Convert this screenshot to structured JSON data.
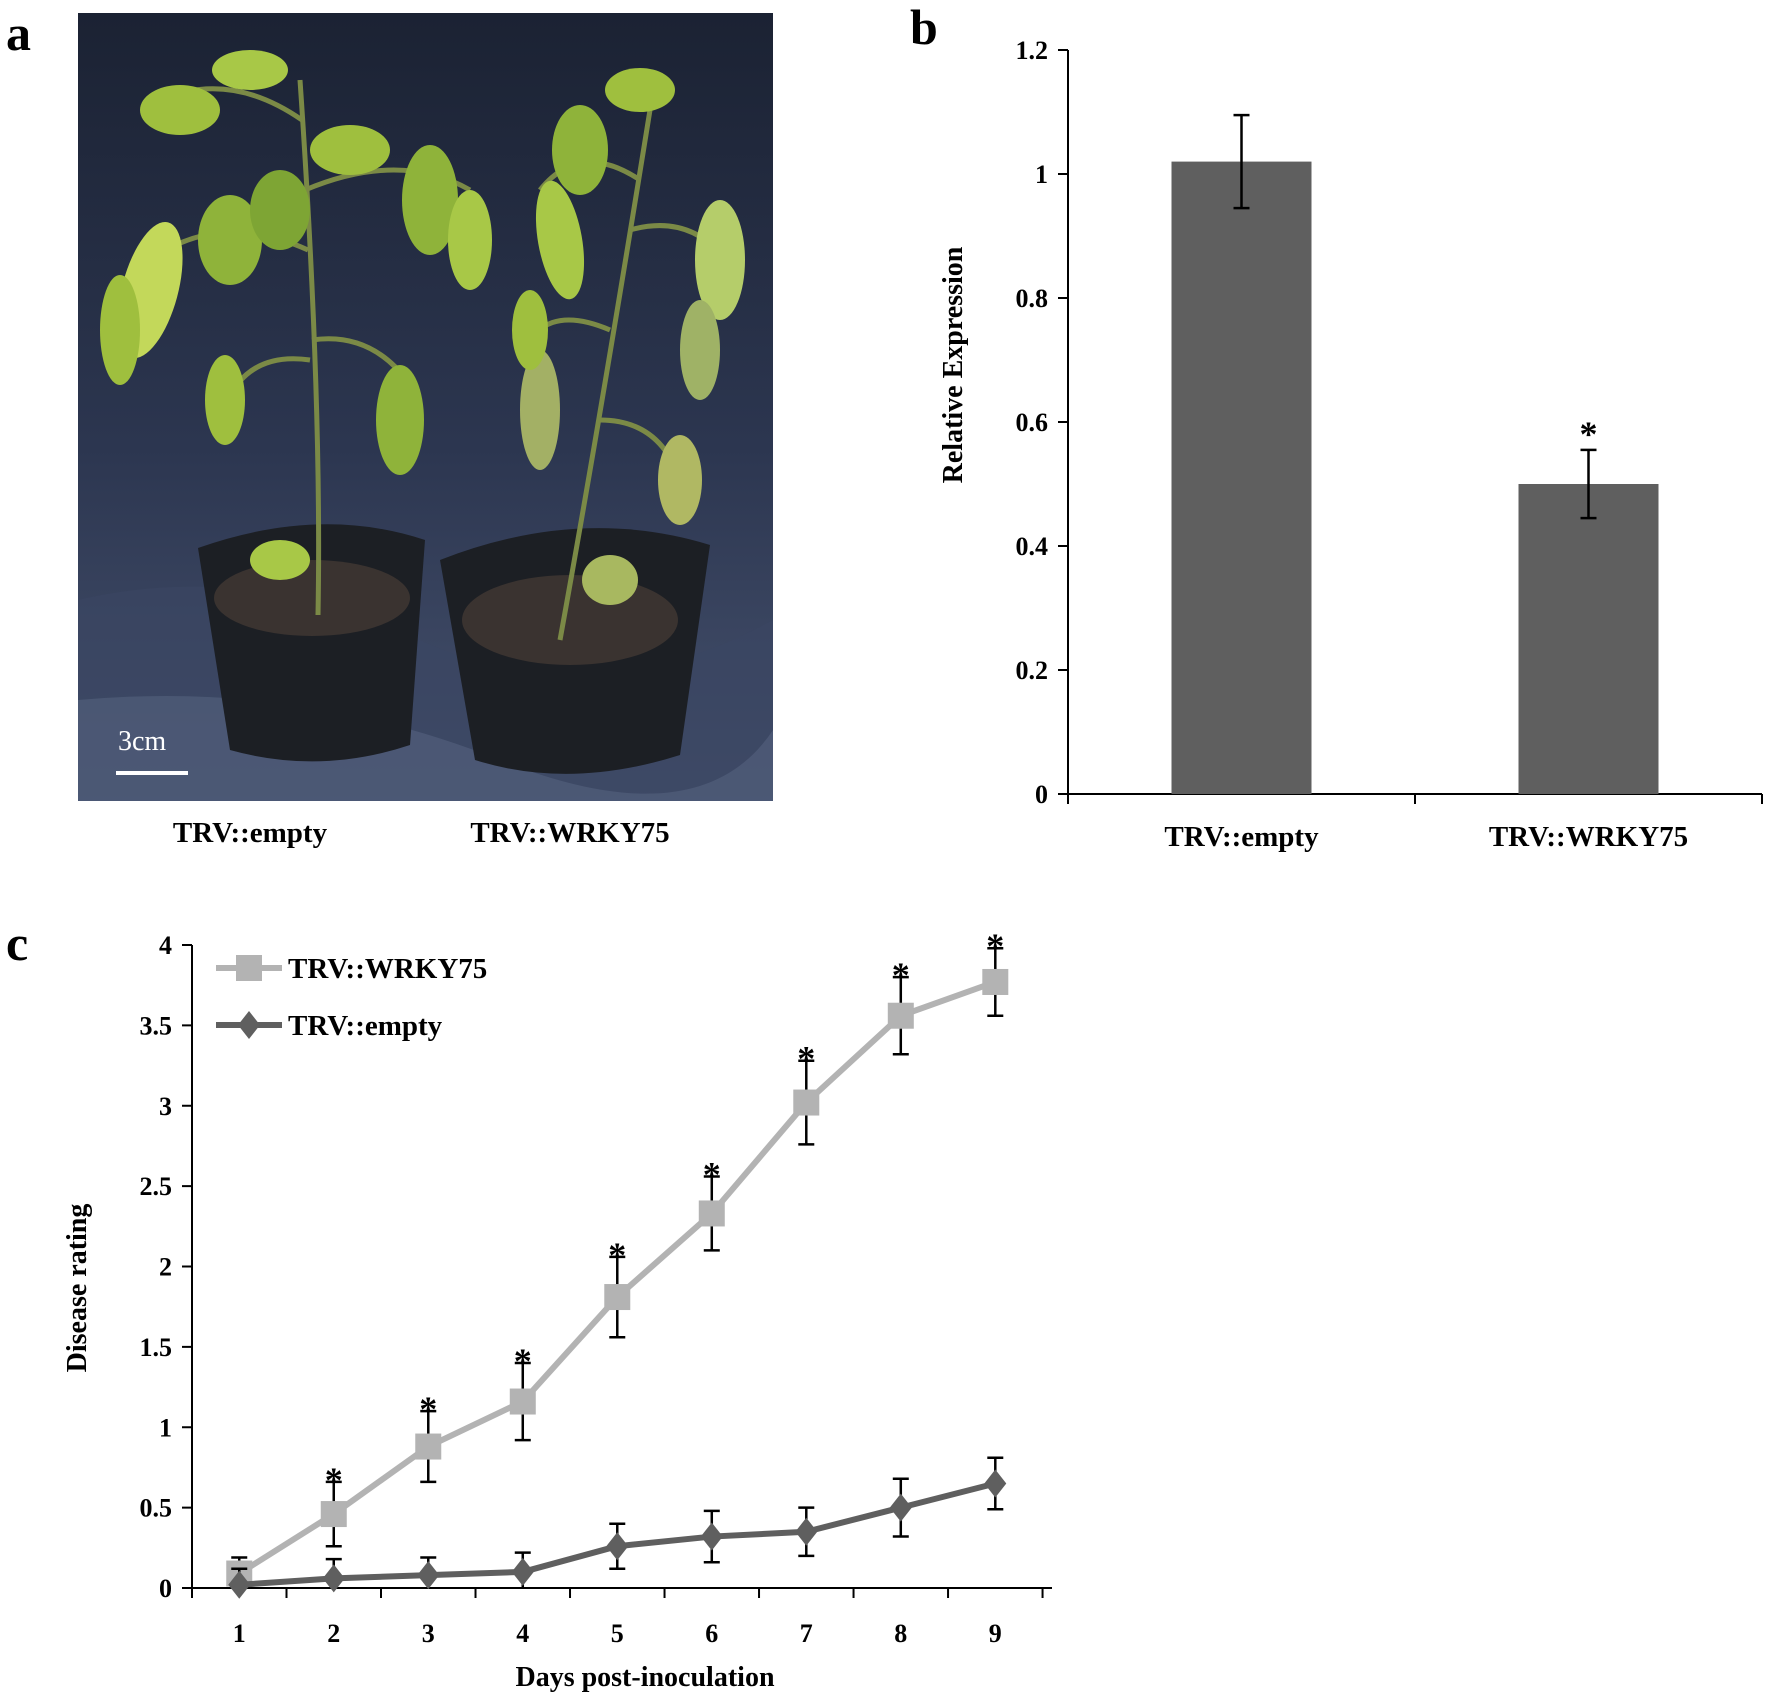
{
  "panels": {
    "a": "a",
    "b": "b",
    "c": "c"
  },
  "photo": {
    "scale_bar_label": "3cm",
    "labels": [
      "TRV::empty",
      "TRV::WRKY75"
    ],
    "colors": {
      "background": "#2f3b55",
      "pot": "#1c1f24",
      "soil": "#3a3330",
      "leaf": "#8fb33a",
      "leaf_light": "#c3d85a",
      "stem": "#7b8a46"
    }
  },
  "chart_data": [
    {
      "panel": "b",
      "type": "bar",
      "categories": [
        "TRV::empty",
        "TRV::WRKY75"
      ],
      "values": [
        1.02,
        0.5
      ],
      "error": [
        0.075,
        0.055
      ],
      "significance": [
        "",
        "*"
      ],
      "title": "",
      "xlabel": "",
      "ylabel": "Relative Expression",
      "ylim": [
        0,
        1.2
      ],
      "yticks": [
        0,
        0.2,
        0.4,
        0.6,
        0.8,
        1,
        1.2
      ],
      "ytick_labels": [
        "0",
        "0.2",
        "0.4",
        "0.6",
        "0.8",
        "1",
        "1.2"
      ],
      "bar_color": "#5f5f5f",
      "grid": false
    },
    {
      "panel": "c",
      "type": "line",
      "x": [
        1,
        2,
        3,
        4,
        5,
        6,
        7,
        8,
        9
      ],
      "xtick_labels": [
        "1",
        "2",
        "3",
        "4",
        "5",
        "6",
        "7",
        "8",
        "9"
      ],
      "series": [
        {
          "name": "TRV::WRKY75",
          "values": [
            0.09,
            0.46,
            0.88,
            1.16,
            1.81,
            2.33,
            3.02,
            3.56,
            3.77
          ],
          "error": [
            0.1,
            0.2,
            0.22,
            0.24,
            0.25,
            0.23,
            0.26,
            0.24,
            0.21
          ],
          "significance": [
            "",
            "*",
            "*",
            "*",
            "*",
            "*",
            "*",
            "*",
            "*"
          ],
          "color": "#b3b3b3",
          "marker": "square"
        },
        {
          "name": "TRV::empty",
          "values": [
            0.02,
            0.06,
            0.08,
            0.1,
            0.26,
            0.32,
            0.35,
            0.5,
            0.65
          ],
          "error": [
            0.1,
            0.12,
            0.11,
            0.12,
            0.14,
            0.16,
            0.15,
            0.18,
            0.16
          ],
          "significance": [
            "",
            "",
            "",
            "",
            "",
            "",
            "",
            "",
            ""
          ],
          "color": "#5f5f5f",
          "marker": "diamond"
        }
      ],
      "title": "",
      "xlabel": "Days post-inoculation",
      "ylabel": "Disease rating",
      "ylim": [
        0,
        4
      ],
      "yticks": [
        0,
        0.5,
        1,
        1.5,
        2,
        2.5,
        3,
        3.5,
        4
      ],
      "ytick_labels": [
        "0",
        "0.5",
        "1",
        "1.5",
        "2",
        "2.5",
        "3",
        "3.5",
        "4"
      ],
      "legend_position": "top-left",
      "grid": false
    }
  ]
}
